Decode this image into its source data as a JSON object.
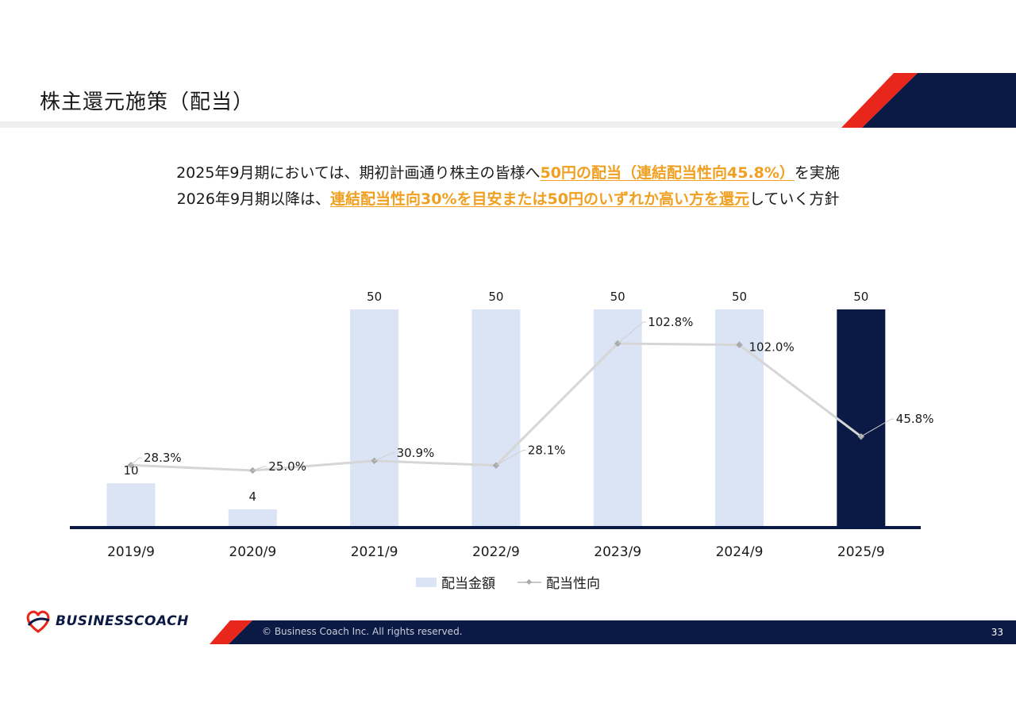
{
  "header": {
    "title": "株主還元施策（配当）"
  },
  "message": {
    "line1_pre": "2025年9月期においては、期初計画通り株主の皆様へ",
    "line1_hl": "50円の配当（連結配当性向45.8%）",
    "line1_post": "を実施",
    "line2_pre": "2026年9月期以降は、",
    "line2_hl": "連結配当性向30%を目安または50円のいずれか高い方を還元",
    "line2_post": "していく方針"
  },
  "chart_data": {
    "type": "bar",
    "categories": [
      "2019/9",
      "2020/9",
      "2021/9",
      "2022/9",
      "2023/9",
      "2024/9",
      "2025/9"
    ],
    "series": [
      {
        "name": "配当金額",
        "type": "bar",
        "values": [
          10,
          4,
          50,
          50,
          50,
          50,
          50
        ],
        "labels": [
          "10",
          "4",
          "50",
          "50",
          "50",
          "50",
          "50"
        ]
      },
      {
        "name": "配当性向",
        "type": "line",
        "values": [
          28.3,
          25.0,
          30.9,
          28.1,
          102.8,
          102.0,
          45.8
        ],
        "labels": [
          "28.3%",
          "25.0%",
          "30.9%",
          "28.1%",
          "102.8%",
          "102.0%",
          "45.8%"
        ]
      }
    ],
    "highlight_index": 6,
    "colors": {
      "bar": "#dbe4f5",
      "bar_highlight": "#0b1a44",
      "line": "#d6d6d6",
      "marker": "#aaaaaa",
      "axis": "#0b1a44"
    },
    "legend_position": "bottom",
    "grid": false
  },
  "footer": {
    "copyright": "© Business Coach Inc. All rights reserved.",
    "page": "33",
    "logo": "BUSINESSCOACH"
  },
  "colors": {
    "navy": "#0b1a44",
    "red": "#e8261c",
    "accent": "#f0a020"
  }
}
